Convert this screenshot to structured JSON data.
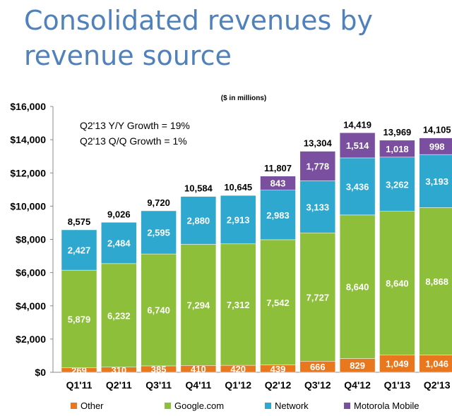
{
  "title": "Consolidated revenues by revenue source",
  "chart_data": {
    "type": "bar",
    "stacked": true,
    "unit_note": "($ in millions)",
    "annotations": [
      "Q2'13 Y/Y Growth = 19%",
      "Q2'13 Q/Q Growth = 1%"
    ],
    "categories": [
      "Q1'11",
      "Q2'11",
      "Q3'11",
      "Q4'11",
      "Q1'12",
      "Q2'12",
      "Q3'12",
      "Q4'12",
      "Q1'13",
      "Q2'13"
    ],
    "series": [
      {
        "name": "Other",
        "color": "#E8771E",
        "values": [
          269,
          310,
          385,
          410,
          420,
          439,
          666,
          829,
          1049,
          1046
        ]
      },
      {
        "name": "Google.com",
        "color": "#8DBF3A",
        "values": [
          5879,
          6232,
          6740,
          7294,
          7312,
          7542,
          7727,
          8640,
          8640,
          8868
        ]
      },
      {
        "name": "Network",
        "color": "#2FA8D0",
        "values": [
          2427,
          2484,
          2595,
          2880,
          2913,
          2983,
          3133,
          3436,
          3262,
          3193
        ]
      },
      {
        "name": "Motorola Mobile",
        "color": "#7B4FA0",
        "values": [
          null,
          null,
          null,
          null,
          null,
          843,
          1778,
          1514,
          1018,
          998
        ]
      }
    ],
    "totals": [
      8575,
      9026,
      9720,
      10584,
      10645,
      11807,
      13304,
      14419,
      13969,
      14105
    ],
    "ylim": [
      0,
      16000
    ],
    "yticks": [
      "$0",
      "$2,000",
      "$4,000",
      "$6,000",
      "$8,000",
      "$10,000",
      "$12,000",
      "$14,000",
      "$16,000"
    ],
    "legend_position": "bottom",
    "grid": false
  }
}
